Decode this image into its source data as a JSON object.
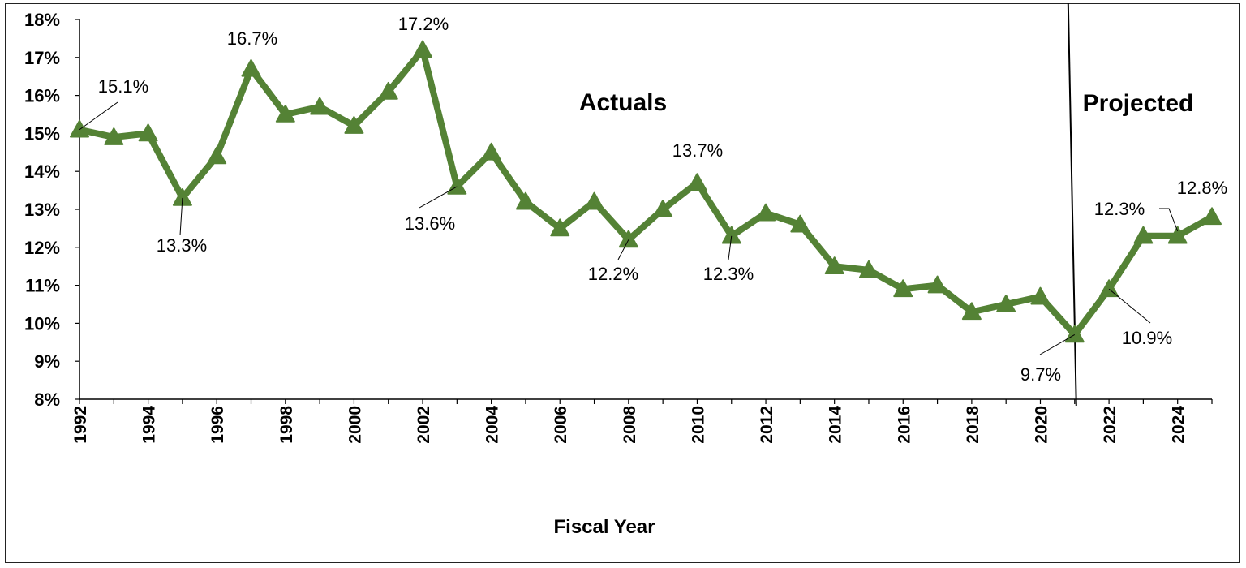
{
  "chart_data": {
    "type": "line",
    "title": "",
    "xlabel": "Fiscal Year",
    "ylabel": "",
    "ylim": [
      8,
      18
    ],
    "xlim": [
      1992,
      2025
    ],
    "y_ticks": [
      "8%",
      "9%",
      "10%",
      "11%",
      "12%",
      "13%",
      "14%",
      "15%",
      "16%",
      "17%",
      "18%"
    ],
    "x_ticks": [
      "1992",
      "1994",
      "1996",
      "1998",
      "2000",
      "2002",
      "2004",
      "2006",
      "2008",
      "2010",
      "2012",
      "2014",
      "2016",
      "2018",
      "2020",
      "2022",
      "2024"
    ],
    "x": [
      1992,
      1993,
      1994,
      1995,
      1996,
      1997,
      1998,
      1999,
      2000,
      2001,
      2002,
      2003,
      2004,
      2005,
      2006,
      2007,
      2008,
      2009,
      2010,
      2011,
      2012,
      2013,
      2014,
      2015,
      2016,
      2017,
      2018,
      2019,
      2020,
      2021,
      2022,
      2023,
      2024,
      2025
    ],
    "series": [
      {
        "values": [
          15.1,
          14.9,
          15.0,
          13.3,
          14.4,
          16.7,
          15.5,
          15.7,
          15.2,
          16.1,
          17.2,
          13.6,
          14.5,
          13.2,
          12.5,
          13.2,
          12.2,
          13.0,
          13.7,
          12.3,
          12.9,
          12.6,
          11.5,
          11.4,
          10.9,
          11.0,
          10.3,
          10.5,
          10.7,
          9.7,
          10.9,
          12.3,
          12.3,
          12.8
        ]
      }
    ],
    "grid": false,
    "legend": "none",
    "line_color": "#548235",
    "divider_year": 2021,
    "regions": [
      "Actuals",
      "Projected"
    ],
    "data_labels": [
      {
        "x": 1992,
        "text": "15.1%"
      },
      {
        "x": 1995,
        "text": "13.3%"
      },
      {
        "x": 1997,
        "text": "16.7%"
      },
      {
        "x": 2002,
        "text": "17.2%"
      },
      {
        "x": 2003,
        "text": "13.6%"
      },
      {
        "x": 2008,
        "text": "12.2%"
      },
      {
        "x": 2010,
        "text": "13.7%"
      },
      {
        "x": 2011,
        "text": "12.3%"
      },
      {
        "x": 2021,
        "text": "9.7%"
      },
      {
        "x": 2022,
        "text": "10.9%"
      },
      {
        "x": 2023,
        "text": "12.3%"
      },
      {
        "x": 2025,
        "text": "12.8%"
      }
    ]
  }
}
